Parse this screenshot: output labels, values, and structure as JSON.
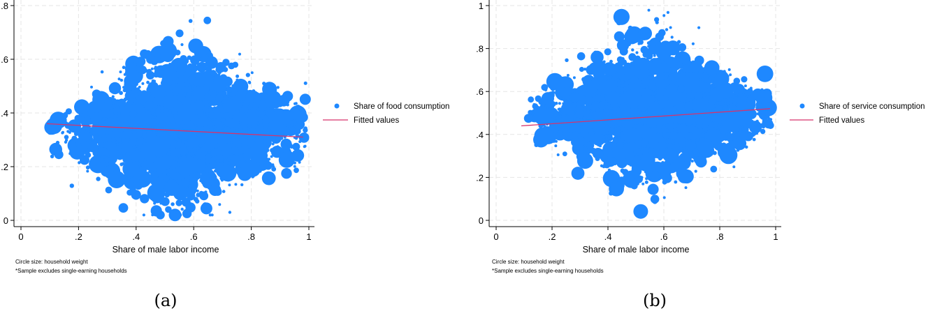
{
  "colors": {
    "marker": "#1e88ff",
    "fit": "#d6336c",
    "grid": "#e6e6e6"
  },
  "chart_data": [
    {
      "type": "scatter",
      "xlabel": "Share of male labor income",
      "ylabel": "",
      "xlim": [
        0,
        1
      ],
      "ylim": [
        0,
        0.8
      ],
      "x_ticks": [
        "0",
        ".2",
        ".4",
        ".6",
        ".8",
        "1"
      ],
      "y_ticks": [
        "0",
        ".2",
        ".4",
        ".6",
        ".8"
      ],
      "grid": true,
      "legend_position": "right",
      "series": [
        {
          "name": "Share of food consumption",
          "kind": "scatter",
          "cloud": {
            "x_range": [
              0.1,
              0.99
            ],
            "y_center": 0.34,
            "y_spread": 0.22
          }
        },
        {
          "name": "Fitted values",
          "kind": "line",
          "x": [
            0.09,
            0.98
          ],
          "y": [
            0.36,
            0.31
          ]
        }
      ],
      "notes": [
        "Circle size: household weight",
        "*Sample excludes single-earning households"
      ],
      "caption": "(a)"
    },
    {
      "type": "scatter",
      "xlabel": "Share of male labor income",
      "ylabel": "",
      "xlim": [
        0,
        1
      ],
      "ylim": [
        0,
        1
      ],
      "x_ticks": [
        "0",
        ".2",
        ".4",
        ".6",
        ".8",
        "1"
      ],
      "y_ticks": [
        "0",
        ".2",
        ".4",
        ".6",
        ".8",
        "1"
      ],
      "grid": true,
      "legend_position": "right",
      "series": [
        {
          "name": "Share of service consumption",
          "kind": "scatter",
          "cloud": {
            "x_range": [
              0.1,
              0.99
            ],
            "y_center": 0.5,
            "y_spread": 0.25
          }
        },
        {
          "name": "Fitted values",
          "kind": "line",
          "x": [
            0.09,
            0.98
          ],
          "y": [
            0.44,
            0.52
          ]
        }
      ],
      "notes": [
        "Circle size: household weight",
        "*Sample excludes single-earning households"
      ],
      "caption": "(b)"
    }
  ]
}
